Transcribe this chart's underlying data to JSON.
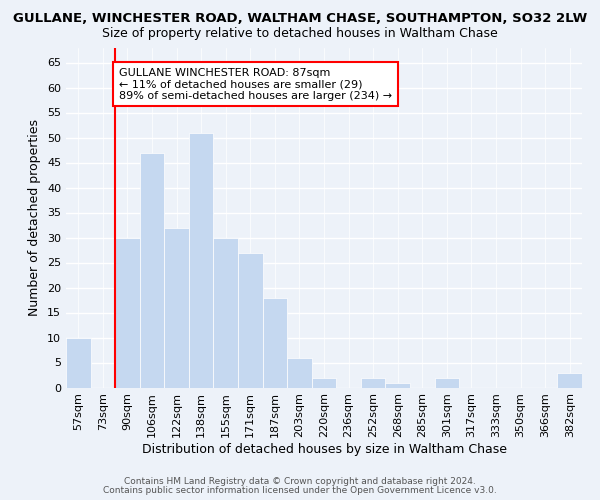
{
  "title": "GULLANE, WINCHESTER ROAD, WALTHAM CHASE, SOUTHAMPTON, SO32 2LW",
  "subtitle": "Size of property relative to detached houses in Waltham Chase",
  "xlabel": "Distribution of detached houses by size in Waltham Chase",
  "ylabel": "Number of detached properties",
  "footer1": "Contains HM Land Registry data © Crown copyright and database right 2024.",
  "footer2": "Contains public sector information licensed under the Open Government Licence v3.0.",
  "categories": [
    "57sqm",
    "73sqm",
    "90sqm",
    "106sqm",
    "122sqm",
    "138sqm",
    "155sqm",
    "171sqm",
    "187sqm",
    "203sqm",
    "220sqm",
    "236sqm",
    "252sqm",
    "268sqm",
    "285sqm",
    "301sqm",
    "317sqm",
    "333sqm",
    "350sqm",
    "366sqm",
    "382sqm"
  ],
  "values": [
    10,
    0,
    30,
    47,
    32,
    51,
    30,
    27,
    18,
    6,
    2,
    0,
    2,
    1,
    0,
    2,
    0,
    0,
    0,
    0,
    3
  ],
  "bar_color": "#c5d8f0",
  "bar_edge_color": "#c5d8f0",
  "annotation_text": "GULLANE WINCHESTER ROAD: 87sqm\n← 11% of detached houses are smaller (29)\n89% of semi-detached houses are larger (234) →",
  "red_line_index": 2,
  "ylim": [
    0,
    68
  ],
  "yticks": [
    0,
    5,
    10,
    15,
    20,
    25,
    30,
    35,
    40,
    45,
    50,
    55,
    60,
    65
  ],
  "bg_color": "#edf2f9",
  "plot_bg_color": "#edf2f9",
  "title_fontsize": 9.5,
  "subtitle_fontsize": 9,
  "axis_label_fontsize": 9,
  "tick_fontsize": 8,
  "annotation_fontsize": 8,
  "footer_fontsize": 6.5
}
